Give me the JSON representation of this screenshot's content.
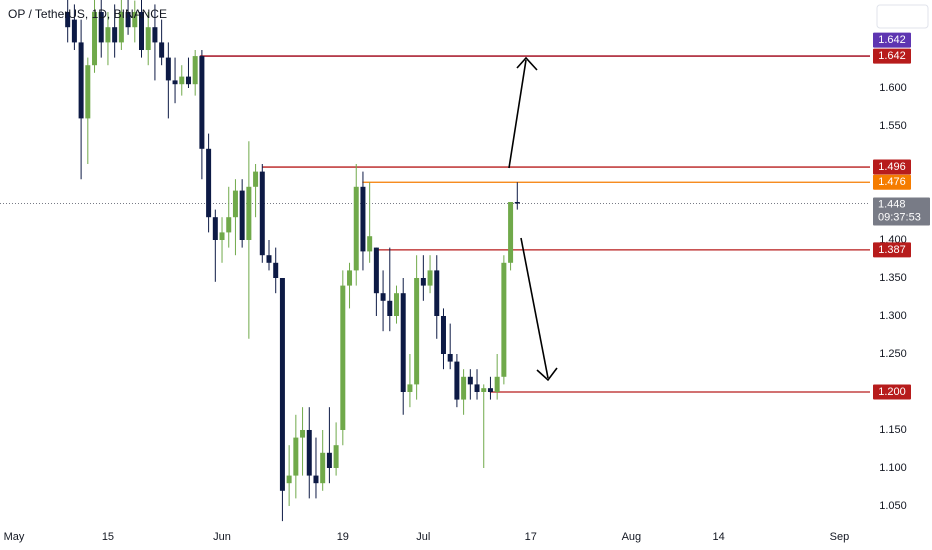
{
  "chart_data": {
    "type": "candlestick",
    "title": "OP / TetherUS, 1D, BINANCE",
    "up_color": "#70a94a",
    "down_color": "#0d1a45",
    "xlim": [
      -2.086,
      127.56
    ],
    "xticks": [
      {
        "value": 0,
        "label": "May"
      },
      {
        "value": 14,
        "label": "15"
      },
      {
        "value": 31,
        "label": "Jun"
      },
      {
        "value": 49,
        "label": "19"
      },
      {
        "value": 61,
        "label": "Jul"
      },
      {
        "value": 77,
        "label": "17"
      },
      {
        "value": 92,
        "label": "Aug"
      },
      {
        "value": 105,
        "label": "14"
      },
      {
        "value": 123,
        "label": "Sep"
      }
    ],
    "ylim": [
      1.0184,
      1.7158
    ],
    "yticks": [
      {
        "value": 1.6,
        "label": "1.600"
      },
      {
        "value": 1.55,
        "label": "1.550"
      },
      {
        "value": 1.4,
        "label": "1.400"
      },
      {
        "value": 1.35,
        "label": "1.350"
      },
      {
        "value": 1.3,
        "label": "1.300"
      },
      {
        "value": 1.25,
        "label": "1.250"
      },
      {
        "value": 1.15,
        "label": "1.150"
      },
      {
        "value": 1.1,
        "label": "1.100"
      },
      {
        "value": 1.05,
        "label": "1.050"
      }
    ],
    "x": [
      8,
      9,
      10,
      11,
      12,
      13,
      14,
      15,
      16,
      17,
      18,
      19,
      20,
      21,
      22,
      23,
      24,
      25,
      26,
      27,
      28,
      29,
      30,
      31,
      32,
      33,
      34,
      35,
      36,
      37,
      38,
      39,
      40,
      41,
      42,
      43,
      44,
      45,
      46,
      47,
      48,
      49,
      50,
      51,
      52,
      53,
      54,
      55,
      56,
      57,
      58,
      59,
      60,
      61,
      62,
      63,
      64,
      65,
      66,
      67,
      68,
      69,
      70,
      71,
      72,
      73,
      74,
      75
    ],
    "open": [
      1.7,
      1.69,
      1.66,
      1.56,
      1.63,
      1.7,
      1.66,
      1.68,
      1.66,
      1.7,
      1.68,
      1.7,
      1.65,
      1.68,
      1.66,
      1.64,
      1.61,
      1.605,
      1.615,
      1.605,
      1.642,
      1.52,
      1.43,
      1.4,
      1.41,
      1.43,
      1.465,
      1.4,
      1.47,
      1.49,
      1.38,
      1.37,
      1.35,
      1.08,
      1.09,
      1.14,
      1.15,
      1.09,
      1.08,
      1.12,
      1.1,
      1.15,
      1.34,
      1.36,
      1.47,
      1.385,
      1.39,
      1.33,
      1.32,
      1.3,
      1.33,
      1.2,
      1.21,
      1.35,
      1.34,
      1.36,
      1.3,
      1.25,
      1.24,
      1.19,
      1.22,
      1.21,
      1.2,
      1.205,
      1.2,
      1.22,
      1.37,
      1.45
    ],
    "high": [
      1.72,
      1.71,
      1.69,
      1.64,
      1.72,
      1.72,
      1.7,
      1.71,
      1.72,
      1.72,
      1.715,
      1.72,
      1.7,
      1.71,
      1.69,
      1.66,
      1.64,
      1.63,
      1.64,
      1.65,
      1.65,
      1.54,
      1.44,
      1.43,
      1.47,
      1.48,
      1.48,
      1.53,
      1.5,
      1.5,
      1.4,
      1.39,
      1.35,
      1.13,
      1.17,
      1.18,
      1.18,
      1.14,
      1.15,
      1.18,
      1.16,
      1.36,
      1.37,
      1.5,
      1.49,
      1.476,
      1.39,
      1.36,
      1.39,
      1.34,
      1.35,
      1.25,
      1.38,
      1.38,
      1.38,
      1.38,
      1.31,
      1.29,
      1.25,
      1.23,
      1.23,
      1.23,
      1.21,
      1.22,
      1.25,
      1.38,
      1.45,
      1.476
    ],
    "low": [
      1.66,
      1.65,
      1.48,
      1.5,
      1.62,
      1.64,
      1.63,
      1.64,
      1.65,
      1.67,
      1.66,
      1.64,
      1.63,
      1.61,
      1.63,
      1.56,
      1.58,
      1.59,
      1.6,
      1.59,
      1.48,
      1.41,
      1.345,
      1.37,
      1.39,
      1.38,
      1.39,
      1.27,
      1.43,
      1.37,
      1.36,
      1.33,
      1.03,
      1.05,
      1.06,
      1.09,
      1.06,
      1.06,
      1.07,
      1.08,
      1.09,
      1.13,
      1.31,
      1.34,
      1.36,
      1.37,
      1.3,
      1.28,
      1.28,
      1.29,
      1.17,
      1.18,
      1.19,
      1.32,
      1.33,
      1.27,
      1.23,
      1.23,
      1.18,
      1.17,
      1.19,
      1.19,
      1.1,
      1.19,
      1.19,
      1.21,
      1.36,
      1.44
    ],
    "close": [
      1.68,
      1.66,
      1.56,
      1.63,
      1.7,
      1.66,
      1.68,
      1.66,
      1.7,
      1.68,
      1.7,
      1.65,
      1.68,
      1.66,
      1.64,
      1.61,
      1.605,
      1.615,
      1.605,
      1.642,
      1.52,
      1.43,
      1.4,
      1.41,
      1.43,
      1.465,
      1.4,
      1.47,
      1.49,
      1.38,
      1.37,
      1.35,
      1.07,
      1.09,
      1.14,
      1.15,
      1.09,
      1.08,
      1.12,
      1.1,
      1.13,
      1.34,
      1.36,
      1.47,
      1.385,
      1.405,
      1.33,
      1.32,
      1.3,
      1.33,
      1.2,
      1.21,
      1.35,
      1.34,
      1.36,
      1.3,
      1.25,
      1.24,
      1.19,
      1.22,
      1.21,
      1.2,
      1.205,
      1.2,
      1.22,
      1.37,
      1.45,
      1.448
    ],
    "levels": [
      {
        "value": 1.642,
        "color": "#5e35b1",
        "from": 27.7
      },
      {
        "value": 1.642,
        "color": "#b71c1c",
        "from": 27.7
      },
      {
        "value": 1.496,
        "color": "#b71c1c",
        "from": 37.0
      },
      {
        "value": 1.476,
        "color": "#f57c00",
        "from": 51.9
      },
      {
        "value": 1.387,
        "color": "#b71c1c",
        "from": 53.8
      },
      {
        "value": 1.2,
        "label": "1.200",
        "color": "#b71c1c",
        "from": 70.9
      }
    ],
    "last_price": 1.448,
    "countdown": "09:37:53"
  }
}
